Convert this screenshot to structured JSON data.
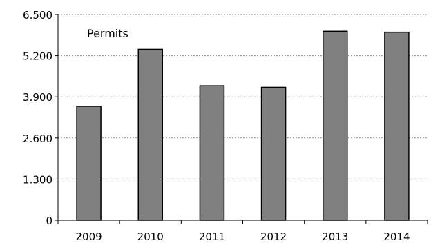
{
  "chart_data": {
    "type": "bar",
    "categories": [
      "2009",
      "2010",
      "2011",
      "2012",
      "2013",
      "2014"
    ],
    "values": [
      3600,
      5400,
      4250,
      4200,
      5970,
      5940
    ],
    "annotation": "Permits",
    "ylim": [
      0,
      6500
    ],
    "yticks": [
      0,
      1300,
      2600,
      3900,
      5200,
      6500
    ],
    "ytick_labels": [
      "0",
      "1.300",
      "2.600",
      "3.900",
      "5.200",
      "6.500"
    ],
    "grid": true,
    "bar_color": "#808080",
    "bar_edge_color": "#000000"
  }
}
